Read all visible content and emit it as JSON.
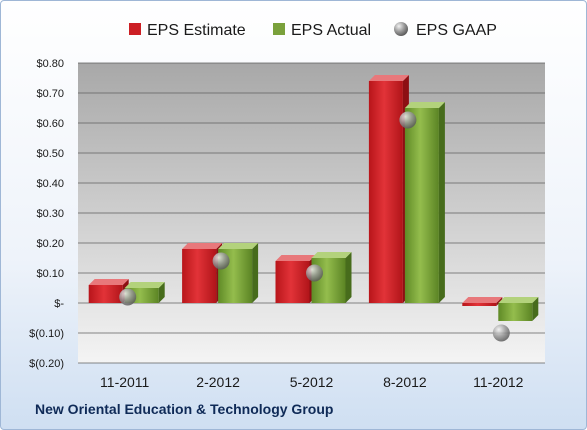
{
  "chart_data": {
    "type": "bar",
    "title": "",
    "subtitle": "",
    "xlabel": "",
    "ylabel": "",
    "categories": [
      "11-2011",
      "2-2012",
      "5-2012",
      "8-2012",
      "11-2012"
    ],
    "series": [
      {
        "name": "EPS Estimate",
        "kind": "bar",
        "color": "#cc1f24",
        "values": [
          0.06,
          0.18,
          0.14,
          0.74,
          -0.01
        ]
      },
      {
        "name": "EPS Actual",
        "kind": "bar",
        "color": "#7aa13b",
        "values": [
          0.05,
          0.18,
          0.15,
          0.65,
          -0.06
        ]
      },
      {
        "name": "EPS GAAP",
        "kind": "marker",
        "color": "#8c8c8c",
        "values": [
          0.02,
          0.14,
          0.1,
          0.61,
          -0.1
        ]
      }
    ],
    "ylim": [
      -0.2,
      0.8
    ],
    "yticks": [
      0.8,
      0.7,
      0.6,
      0.5,
      0.4,
      0.3,
      0.2,
      0.1,
      0.0,
      -0.1,
      -0.2
    ],
    "ytick_labels": [
      "$0.80",
      "$0.70",
      "$0.60",
      "$0.50",
      "$0.40",
      "$0.30",
      "$0.20",
      "$0.10",
      "$-",
      "$(0.10)",
      "$(0.20)"
    ],
    "grid": true,
    "legend_position": "top"
  },
  "footer": {
    "title": "New Oriental Education & Technology Group"
  }
}
